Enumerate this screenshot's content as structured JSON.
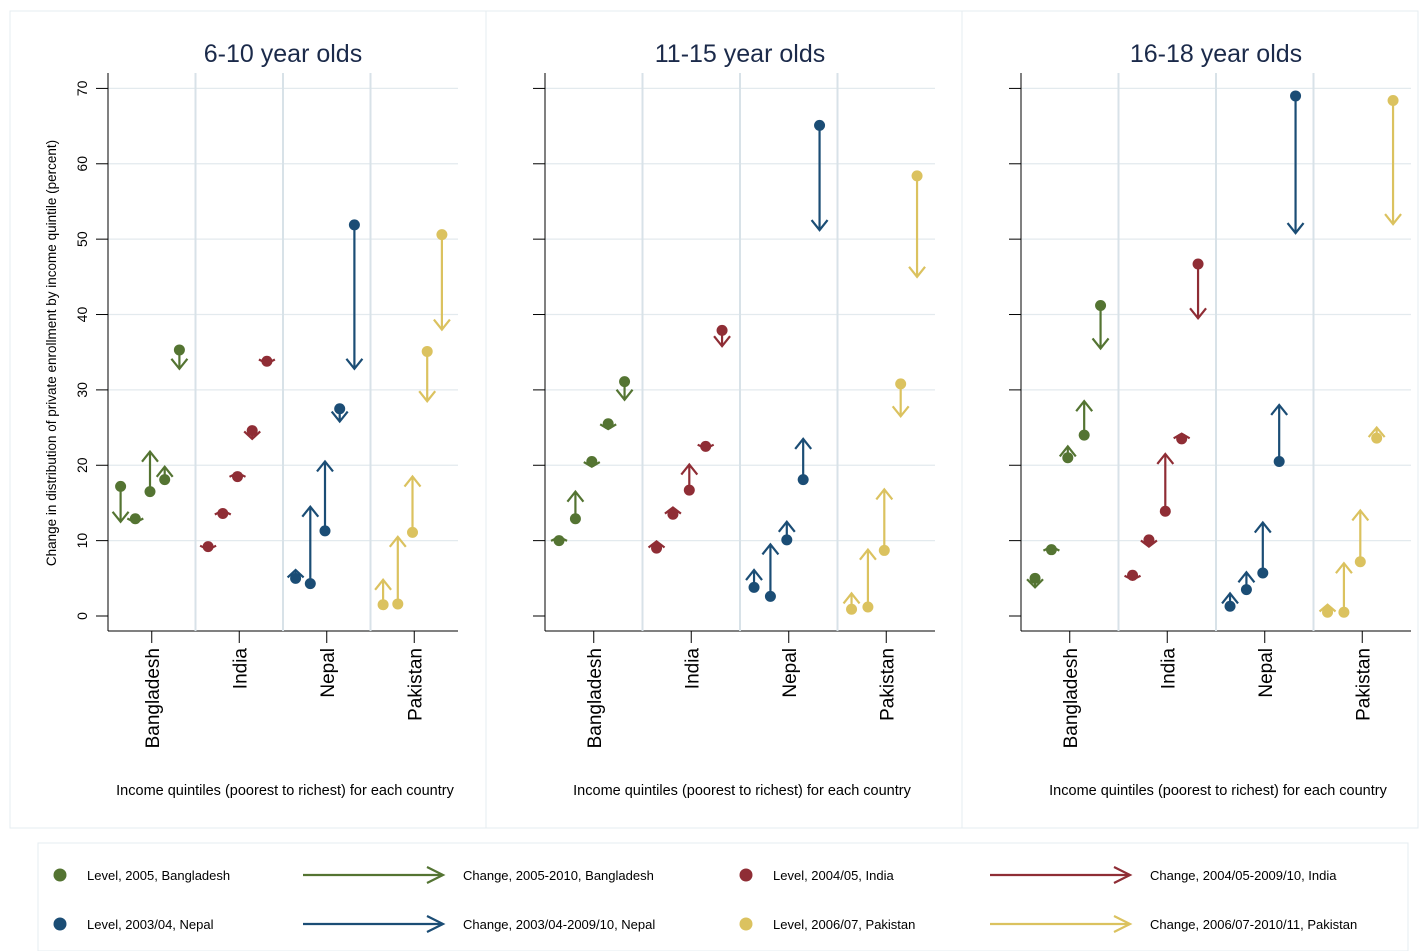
{
  "chart_data": {
    "type": "scatter",
    "ylabel": "Change in distribution of private enrollment by income quintile (percent)",
    "xlabel": "Income quintiles (poorest to richest) for each country",
    "ylim": [
      0,
      72
    ],
    "yticks": [
      0,
      10,
      20,
      30,
      40,
      50,
      60,
      70
    ],
    "categories": [
      "Bangladesh",
      "India",
      "Nepal",
      "Pakistan"
    ],
    "colors": {
      "Bangladesh": "#547432",
      "India": "#8f2d35",
      "Nepal": "#1b4d75",
      "Pakistan": "#dbc25f"
    },
    "panels": [
      {
        "title": "6-10 year olds",
        "series": [
          {
            "country": "Bangladesh",
            "level": [
              17.2,
              12.9,
              16.5,
              18.1,
              35.3
            ],
            "end": [
              12.5,
              12.4,
              21.8,
              19.8,
              32.8
            ]
          },
          {
            "country": "India",
            "level": [
              9.2,
              13.6,
              18.5,
              24.6,
              33.8
            ],
            "end": [
              8.8,
              14.0,
              19.0,
              23.5,
              33.5
            ]
          },
          {
            "country": "Nepal",
            "level": [
              5.0,
              4.3,
              11.3,
              27.5,
              51.9
            ],
            "end": [
              6.1,
              14.5,
              20.5,
              25.8,
              32.8
            ]
          },
          {
            "country": "Pakistan",
            "level": [
              1.5,
              1.6,
              11.1,
              35.1,
              50.6
            ],
            "end": [
              4.8,
              10.5,
              18.5,
              28.5,
              38.0
            ]
          }
        ]
      },
      {
        "title": "11-15 year olds",
        "series": [
          {
            "country": "Bangladesh",
            "level": [
              10.0,
              12.9,
              20.5,
              25.5,
              31.1
            ],
            "end": [
              10.5,
              16.5,
              19.8,
              24.8,
              28.7
            ]
          },
          {
            "country": "India",
            "level": [
              9.0,
              13.5,
              16.7,
              22.5,
              37.9
            ],
            "end": [
              9.9,
              14.4,
              20.1,
              22.2,
              35.8
            ]
          },
          {
            "country": "Nepal",
            "level": [
              3.8,
              2.6,
              10.1,
              18.1,
              65.1
            ],
            "end": [
              6.1,
              9.5,
              12.5,
              23.5,
              51.2
            ]
          },
          {
            "country": "Pakistan",
            "level": [
              0.9,
              1.2,
              8.7,
              30.8,
              58.4
            ],
            "end": [
              3.0,
              8.8,
              16.8,
              26.5,
              45.0
            ]
          }
        ]
      },
      {
        "title": "16-18 year olds",
        "series": [
          {
            "country": "Bangladesh",
            "level": [
              5.0,
              8.8,
              21.0,
              24.0,
              41.2
            ],
            "end": [
              3.8,
              9.2,
              22.5,
              28.5,
              35.5
            ]
          },
          {
            "country": "India",
            "level": [
              5.4,
              10.1,
              13.9,
              23.5,
              46.7
            ],
            "end": [
              4.8,
              9.2,
              21.5,
              24.2,
              39.5
            ]
          },
          {
            "country": "Nepal",
            "level": [
              1.3,
              3.5,
              5.7,
              20.5,
              69.0
            ],
            "end": [
              3.0,
              5.8,
              12.4,
              28.0,
              50.8
            ]
          },
          {
            "country": "Pakistan",
            "level": [
              0.5,
              0.5,
              7.2,
              23.6,
              68.4
            ],
            "end": [
              1.5,
              7.0,
              14.0,
              25.0,
              52.0
            ]
          }
        ]
      }
    ],
    "legend": [
      {
        "label": "Level, 2005, Bangladesh",
        "kind": "dot",
        "country": "Bangladesh"
      },
      {
        "label": "Change, 2005-2010, Bangladesh",
        "kind": "arrow",
        "country": "Bangladesh"
      },
      {
        "label": "Level, 2004/05, India",
        "kind": "dot",
        "country": "India"
      },
      {
        "label": "Change, 2004/05-2009/10, India",
        "kind": "arrow",
        "country": "India"
      },
      {
        "label": "Level, 2003/04, Nepal",
        "kind": "dot",
        "country": "Nepal"
      },
      {
        "label": "Change, 2003/04-2009/10, Nepal",
        "kind": "arrow",
        "country": "Nepal"
      },
      {
        "label": "Level, 2006/07, Pakistan",
        "kind": "dot",
        "country": "Pakistan"
      },
      {
        "label": "Change, 2006/07-2010/11, Pakistan",
        "kind": "arrow",
        "country": "Pakistan"
      }
    ]
  }
}
